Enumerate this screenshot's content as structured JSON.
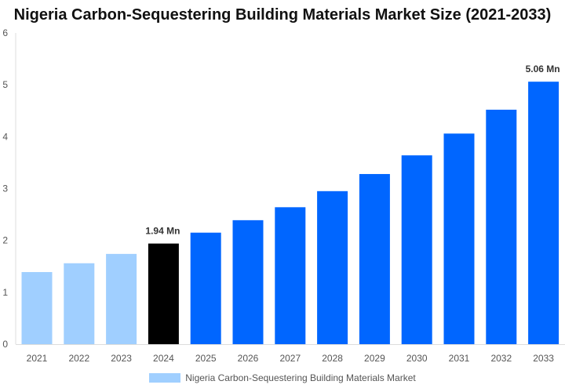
{
  "chart_data": {
    "type": "bar",
    "title": "Nigeria Carbon-Sequestering Building Materials Market Size (2021-2033)",
    "categories": [
      "2021",
      "2022",
      "2023",
      "2024",
      "2025",
      "2026",
      "2027",
      "2028",
      "2029",
      "2030",
      "2031",
      "2032",
      "2033"
    ],
    "series": [
      {
        "name": "Nigeria Carbon-Sequestering Building Materials Market",
        "values": [
          1.39,
          1.56,
          1.74,
          1.94,
          2.15,
          2.39,
          2.64,
          2.95,
          3.28,
          3.64,
          4.06,
          4.52,
          5.06
        ]
      }
    ],
    "bar_colors": [
      "#a0cfff",
      "#a0cfff",
      "#a0cfff",
      "#000000",
      "#0066ff",
      "#0066ff",
      "#0066ff",
      "#0066ff",
      "#0066ff",
      "#0066ff",
      "#0066ff",
      "#0066ff",
      "#0066ff"
    ],
    "data_labels": {
      "2024": "1.94 Mn",
      "2033": "5.06 Mn"
    },
    "yticks": [
      "0",
      "1",
      "2",
      "3",
      "4",
      "5",
      "6"
    ],
    "ylim": [
      0,
      6
    ],
    "xlabel": "",
    "ylabel": "",
    "grid": false,
    "legend_position": "bottom",
    "legend_color": "#a0cfff"
  }
}
